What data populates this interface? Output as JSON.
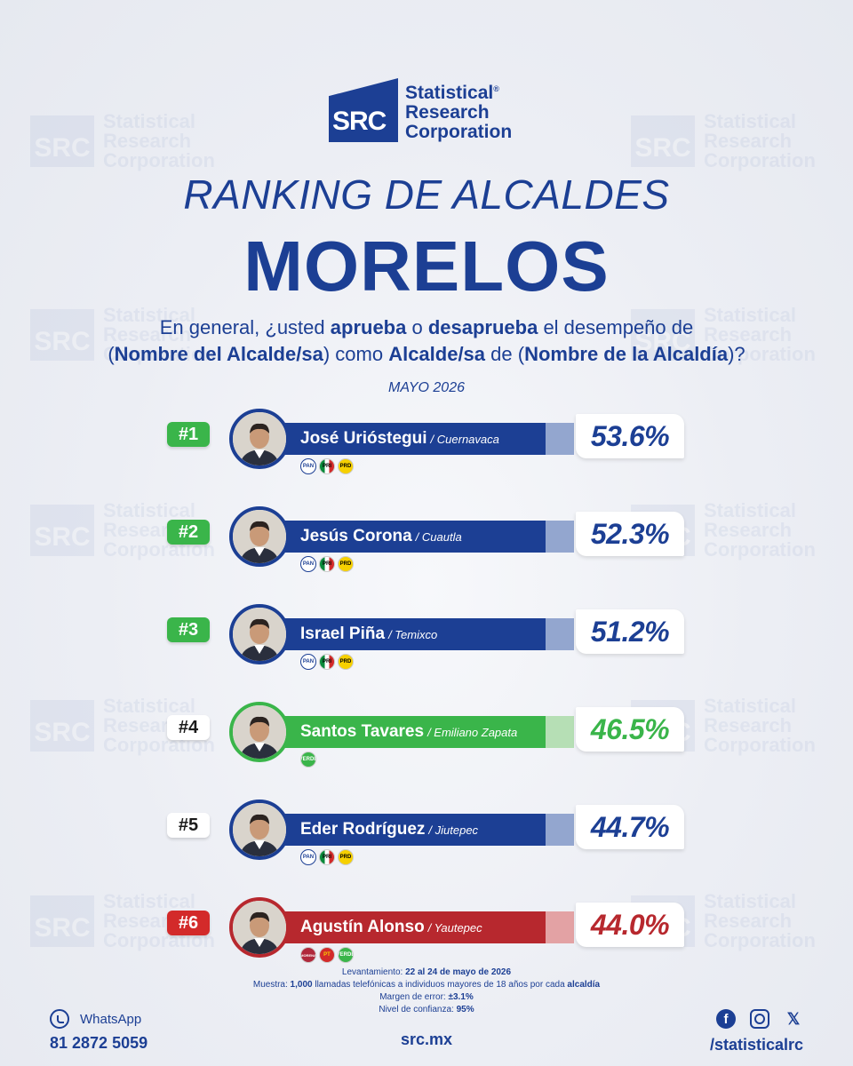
{
  "brand": {
    "logo_letters": "SRC",
    "name_line1": "Statistical",
    "name_line2": "Research",
    "name_line3": "Corporation",
    "registered": "®",
    "primary_color": "#1c3f94"
  },
  "header": {
    "title": "RANKING DE ALCALDES",
    "state": "MORELOS",
    "question_parts": [
      "En general, ¿usted ",
      "aprueba",
      " o ",
      "desaprueba",
      " el desempeño de",
      "(",
      "Nombre del Alcalde/sa",
      ") como ",
      "Alcalde/sa",
      " de (",
      "Nombre de la Alcaldía",
      ")?"
    ],
    "date": "MAYO 2026"
  },
  "ranking": [
    {
      "rank": "#1",
      "name": "José Urióstegui",
      "city": "/ Cuernavaca",
      "percent": "53.6%",
      "value": 53.6,
      "theme": "blue",
      "rank_style": "green",
      "parties": [
        "PAN",
        "PRI",
        "PRD"
      ]
    },
    {
      "rank": "#2",
      "name": "Jesús Corona",
      "city": "/ Cuautla",
      "percent": "52.3%",
      "value": 52.3,
      "theme": "blue",
      "rank_style": "green",
      "parties": [
        "PAN",
        "PRI",
        "PRD"
      ]
    },
    {
      "rank": "#3",
      "name": "Israel Piña",
      "city": "/ Temixco",
      "percent": "51.2%",
      "value": 51.2,
      "theme": "blue",
      "rank_style": "green",
      "parties": [
        "PAN",
        "PRI",
        "PRD"
      ]
    },
    {
      "rank": "#4",
      "name": "Santos Tavares",
      "city": "/ Emiliano Zapata",
      "percent": "46.5%",
      "value": 46.5,
      "theme": "green",
      "rank_style": "white",
      "parties": [
        "VERDE"
      ]
    },
    {
      "rank": "#5",
      "name": "Eder Rodríguez",
      "city": "/ Jiutepec",
      "percent": "44.7%",
      "value": 44.7,
      "theme": "blue",
      "rank_style": "white",
      "parties": [
        "PAN",
        "PRI",
        "PRD"
      ]
    },
    {
      "rank": "#6",
      "name": "Agustín Alonso",
      "city": "/ Yautepec",
      "percent": "44.0%",
      "value": 44.0,
      "theme": "red",
      "rank_style": "red",
      "parties": [
        "MORENA",
        "PT",
        "VERDE"
      ]
    }
  ],
  "themes": {
    "blue": {
      "bar": "#1c3f94",
      "tail": "#93a6cf",
      "text": "#1c3f94"
    },
    "green": {
      "bar": "#3ab54a",
      "tail": "#b6dfb5",
      "text": "#3ab54a"
    },
    "red": {
      "bar": "#b7282e",
      "tail": "#e3a2a4",
      "text": "#b7282e"
    }
  },
  "methodology": {
    "line1_label": "Levantamiento: ",
    "line1_value": "22 al 24 de mayo de 2026",
    "line2_label": "Muestra: ",
    "line2_value1": "1,000",
    "line2_mid": " llamadas telefónicas a individuos mayores de 18 años por cada ",
    "line2_value2": "alcaldía",
    "line3_label": "Margen de error: ",
    "line3_value": "±3.1%",
    "line4_label": "Nivel de confianza: ",
    "line4_value": "95%"
  },
  "footer": {
    "whatsapp_label": "WhatsApp",
    "phone": "81 2872 5059",
    "website": "src.mx",
    "handle": "/statisticalrc",
    "socials": [
      "facebook-icon",
      "instagram-icon",
      "x-icon"
    ]
  }
}
